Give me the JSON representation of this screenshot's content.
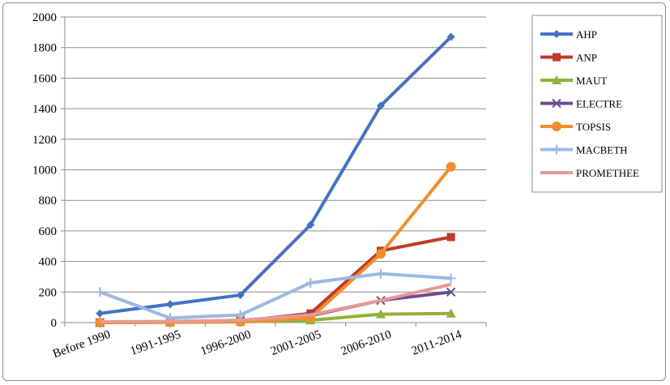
{
  "chart_data": {
    "type": "line",
    "title": "",
    "xlabel": "",
    "ylabel": "",
    "categories": [
      "Before 1990",
      "1991-1995",
      "1996-2000",
      "2001-2005",
      "2006-2010",
      "2011-2014"
    ],
    "ylim": [
      0,
      2000
    ],
    "yticks": [
      "0",
      "200",
      "400",
      "600",
      "800",
      "1000",
      "1200",
      "1400",
      "1600",
      "1800",
      "2000"
    ],
    "grid": true,
    "legend_position": "right",
    "series": [
      {
        "name": "AHP",
        "color": "#4472c4",
        "marker": "diamond",
        "values": [
          60,
          120,
          180,
          640,
          1420,
          1870
        ]
      },
      {
        "name": "ANP",
        "color": "#c0392b",
        "marker": "square",
        "values": [
          0,
          5,
          10,
          60,
          470,
          560
        ]
      },
      {
        "name": "MAUT",
        "color": "#8db33a",
        "marker": "triangle",
        "values": [
          0,
          2,
          5,
          15,
          55,
          60
        ]
      },
      {
        "name": "ELECTRE",
        "color": "#6a4c93",
        "marker": "x",
        "values": [
          0,
          5,
          15,
          45,
          145,
          200
        ]
      },
      {
        "name": "TOPSIS",
        "color": "#f28e2b",
        "marker": "circle",
        "values": [
          0,
          2,
          5,
          30,
          450,
          1020
        ]
      },
      {
        "name": "MACBETH",
        "color": "#9db8e0",
        "marker": "plus",
        "values": [
          200,
          30,
          50,
          260,
          320,
          290
        ]
      },
      {
        "name": "PROMETHEE",
        "color": "#e59a95",
        "marker": "none",
        "values": [
          5,
          8,
          15,
          50,
          145,
          250
        ]
      }
    ]
  }
}
